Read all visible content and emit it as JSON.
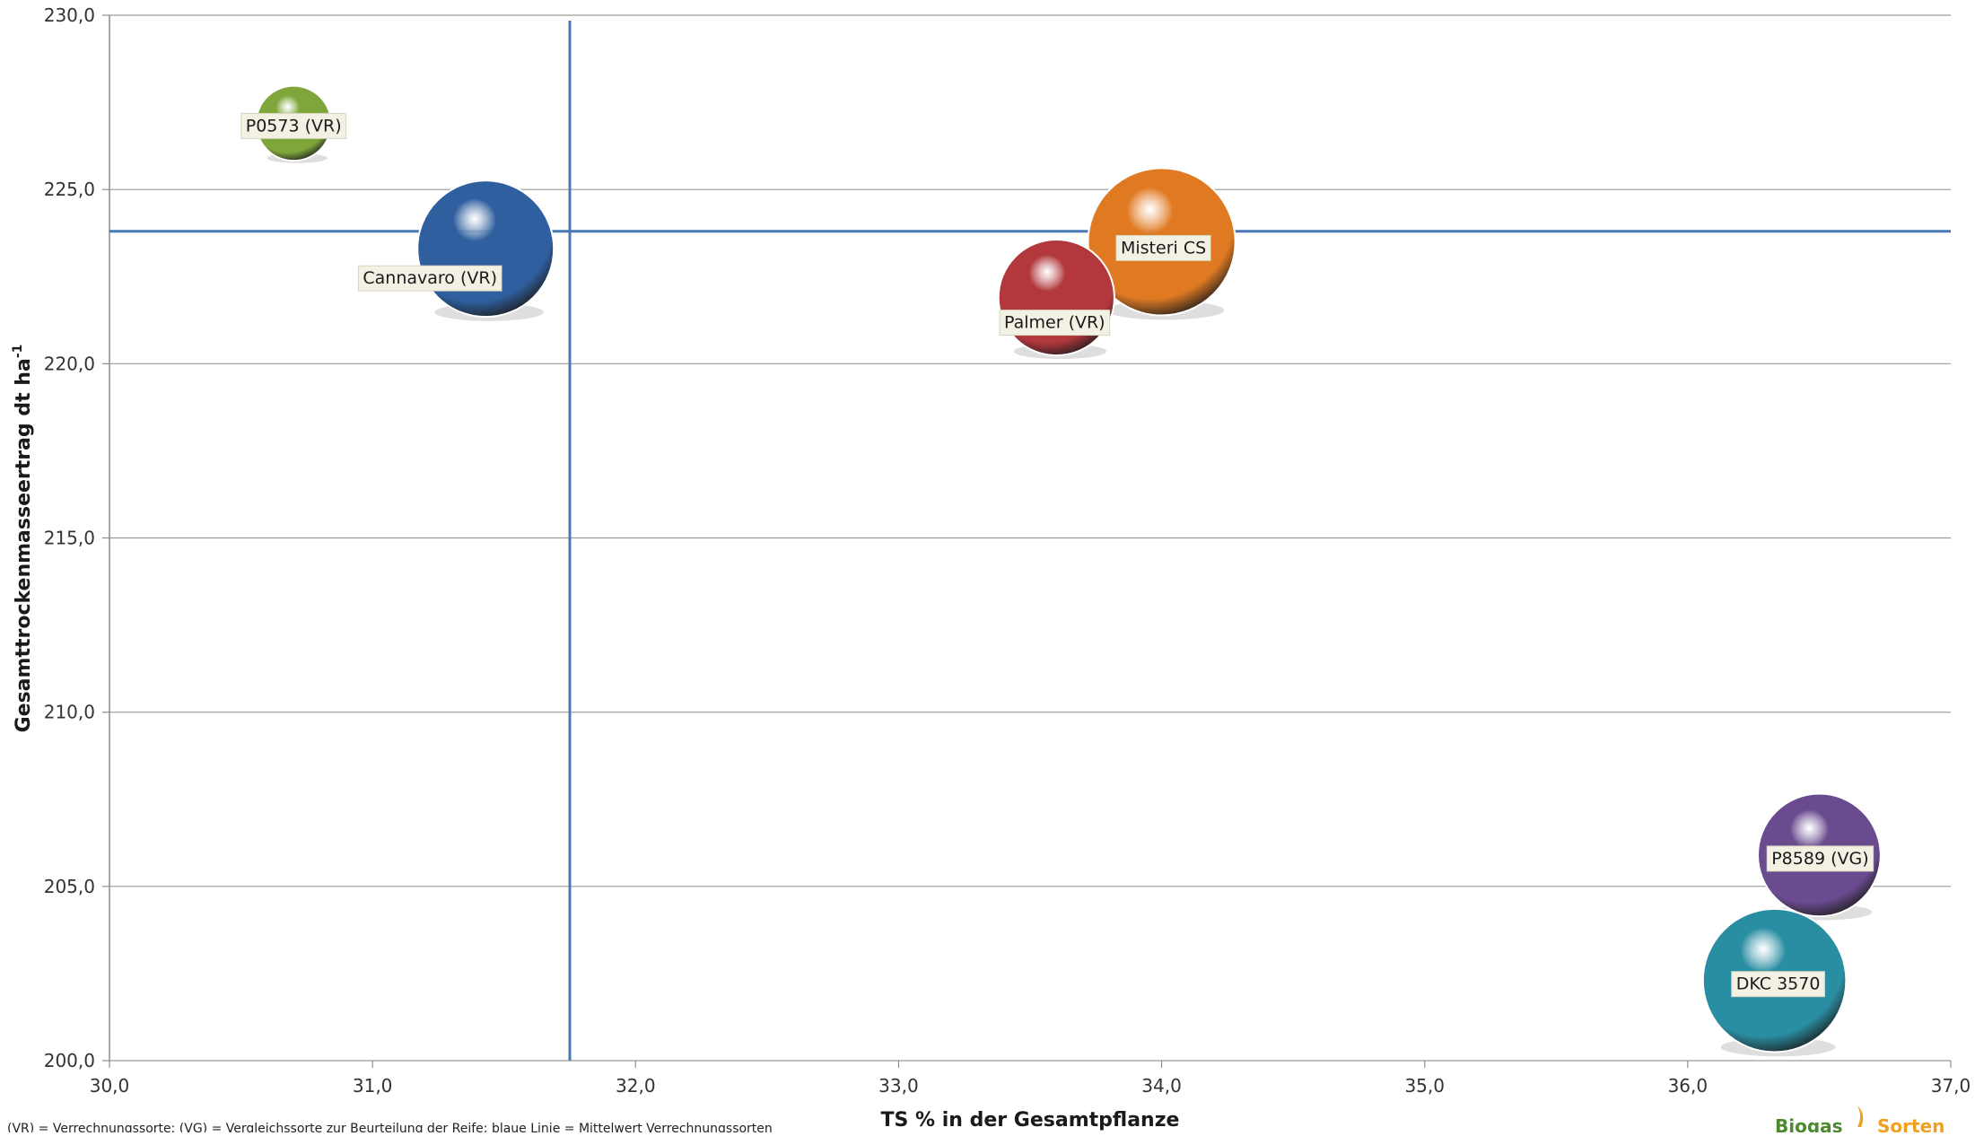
{
  "chart_data": {
    "type": "scatter",
    "subtype": "bubble",
    "xlabel": "TS % in der Gesamtpflanze",
    "ylabel": "Gesamttrockenmasseertrag dt ha",
    "ylabel_superscript": "-1",
    "xlim": [
      30.0,
      37.0
    ],
    "ylim": [
      200.0,
      230.0
    ],
    "x_ticks": [
      "30,0",
      "31,0",
      "32,0",
      "33,0",
      "34,0",
      "35,0",
      "36,0",
      "37,0"
    ],
    "y_ticks": [
      "200,0",
      "205,0",
      "210,0",
      "215,0",
      "220,0",
      "225,0",
      "230,0"
    ],
    "grid": "horizontal",
    "reference_lines": {
      "x_mean": 31.75,
      "y_mean": 223.8,
      "color": "#4a78b5"
    },
    "points": [
      {
        "label": "P0573 (VR)",
        "x": 30.7,
        "y": 226.9,
        "size": 0.55,
        "color": "#7fa63a"
      },
      {
        "label": "Cannavaro (VR)",
        "x": 31.43,
        "y": 223.3,
        "size": 1.0,
        "color": "#2f5f9e"
      },
      {
        "label": "Misteri CS",
        "x": 34.0,
        "y": 223.5,
        "size": 1.08,
        "color": "#e07a22"
      },
      {
        "label": "Palmer (VR)",
        "x": 33.6,
        "y": 221.9,
        "size": 0.85,
        "color": "#b2383d"
      },
      {
        "label": "P8589 (VG)",
        "x": 36.5,
        "y": 205.9,
        "size": 0.9,
        "color": "#6a4b8f"
      },
      {
        "label": "DKC 3570",
        "x": 36.33,
        "y": 202.3,
        "size": 1.05,
        "color": "#2a8ea3"
      }
    ]
  },
  "footnote": "(VR) = Verrechnungssorte; (VG) = Vergleichssorte zur Beurteilung der Reife; blaue Linie = Mittelwert Verrechnungssorten",
  "logo": {
    "word1": "Biogas",
    "word2": "Sorten"
  }
}
